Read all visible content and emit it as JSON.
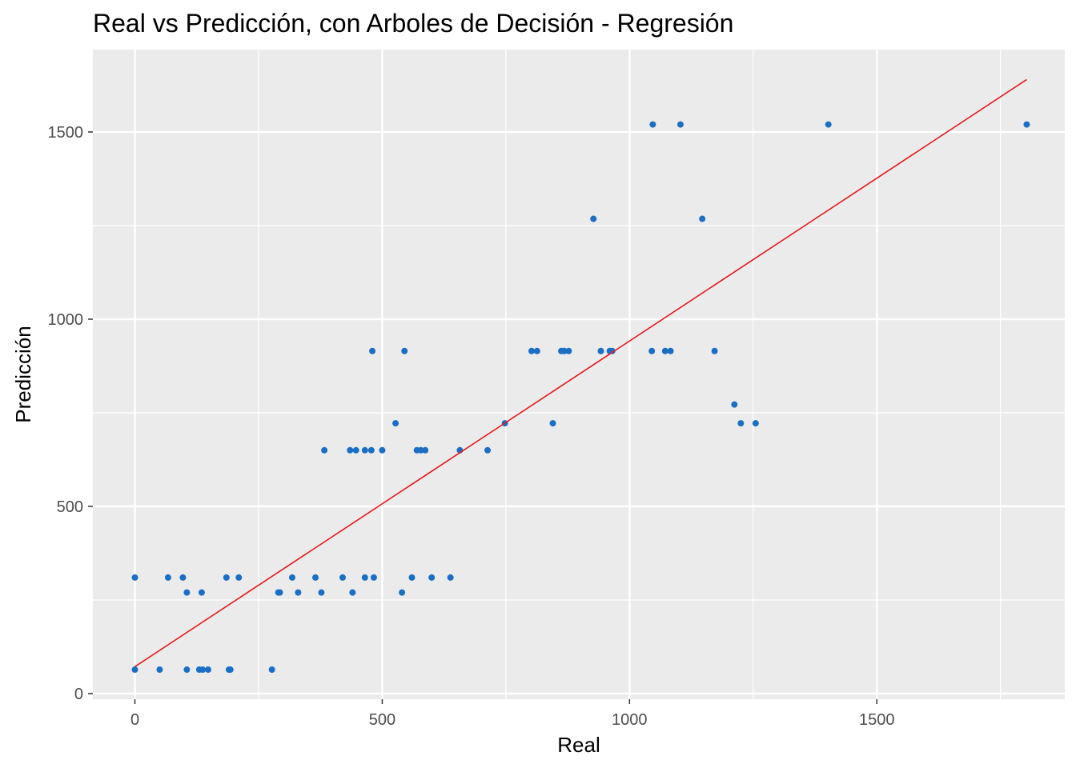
{
  "chart_data": {
    "type": "scatter",
    "title": "Real vs Predicción, con Arboles de Decisión - Regresión",
    "xlabel": "Real",
    "ylabel": "Predicción",
    "xlim": [
      -85,
      1880
    ],
    "ylim": [
      -15,
      1720
    ],
    "x_ticks": [
      0,
      500,
      1000,
      1500
    ],
    "y_ticks": [
      0,
      500,
      1000,
      1500
    ],
    "grid": true,
    "legend": "none",
    "colors": {
      "panel": "#ebebeb",
      "grid": "#ffffff",
      "points": "#1a6fc4",
      "line": "#e31a1c"
    },
    "series": [
      {
        "type": "scatter",
        "points": [
          [
            0,
            310
          ],
          [
            0,
            64
          ],
          [
            50,
            64
          ],
          [
            67,
            310
          ],
          [
            97,
            310
          ],
          [
            105,
            270
          ],
          [
            105,
            64
          ],
          [
            130,
            64
          ],
          [
            135,
            270
          ],
          [
            137,
            64
          ],
          [
            148,
            64
          ],
          [
            185,
            310
          ],
          [
            190,
            64
          ],
          [
            193,
            64
          ],
          [
            210,
            310
          ],
          [
            277,
            64
          ],
          [
            290,
            270
          ],
          [
            293,
            270
          ],
          [
            318,
            310
          ],
          [
            330,
            270
          ],
          [
            365,
            310
          ],
          [
            377,
            270
          ],
          [
            383,
            650
          ],
          [
            420,
            310
          ],
          [
            435,
            650
          ],
          [
            440,
            270
          ],
          [
            447,
            650
          ],
          [
            465,
            650
          ],
          [
            465,
            310
          ],
          [
            478,
            650
          ],
          [
            480,
            915
          ],
          [
            483,
            310
          ],
          [
            500,
            650
          ],
          [
            527,
            722
          ],
          [
            540,
            270
          ],
          [
            545,
            915
          ],
          [
            560,
            310
          ],
          [
            570,
            650
          ],
          [
            578,
            650
          ],
          [
            587,
            650
          ],
          [
            600,
            310
          ],
          [
            638,
            310
          ],
          [
            657,
            650
          ],
          [
            713,
            650
          ],
          [
            748,
            722
          ],
          [
            802,
            915
          ],
          [
            813,
            915
          ],
          [
            845,
            722
          ],
          [
            862,
            915
          ],
          [
            868,
            915
          ],
          [
            877,
            915
          ],
          [
            927,
            1268
          ],
          [
            942,
            915
          ],
          [
            960,
            915
          ],
          [
            965,
            915
          ],
          [
            1045,
            915
          ],
          [
            1047,
            1520
          ],
          [
            1072,
            915
          ],
          [
            1083,
            915
          ],
          [
            1103,
            1520
          ],
          [
            1147,
            1268
          ],
          [
            1172,
            915
          ],
          [
            1212,
            772
          ],
          [
            1225,
            722
          ],
          [
            1255,
            722
          ],
          [
            1402,
            1520
          ],
          [
            1803,
            1520
          ]
        ]
      },
      {
        "type": "line",
        "points": [
          [
            0,
            72
          ],
          [
            1803,
            1640
          ]
        ]
      }
    ]
  }
}
